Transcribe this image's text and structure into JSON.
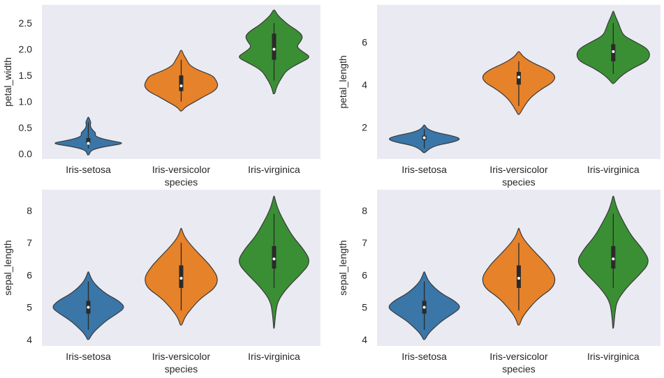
{
  "colors": {
    "background": "#ffffff",
    "axes_face": "#eaeaf2",
    "outline": "#3a3a3a",
    "text": "#262626",
    "box": "#2a2a2a",
    "median": "#ffffff",
    "palette": {
      "Iris-setosa": "#3a76a8",
      "Iris-versicolor": "#e6822a",
      "Iris-virginica": "#3a8f34"
    }
  },
  "chart_data": [
    {
      "type": "violin",
      "xlabel": "species",
      "ylabel": "petal_width",
      "ylim": [
        -0.1,
        2.85
      ],
      "yticks": [
        0.0,
        0.5,
        1.0,
        1.5,
        2.0,
        2.5
      ],
      "ytick_labels": [
        "0.0",
        "0.5",
        "1.0",
        "1.5",
        "2.0",
        "2.5"
      ],
      "grid": false,
      "categories": [
        "Iris-setosa",
        "Iris-versicolor",
        "Iris-virginica"
      ],
      "series": [
        {
          "category": "Iris-setosa",
          "min": 0.1,
          "q1": 0.2,
          "median": 0.2,
          "q3": 0.3,
          "max": 0.6,
          "kde_lo": -0.02,
          "kde_hi": 0.7,
          "profile": [
            [
              -0.02,
              0.02
            ],
            [
              0.05,
              0.06
            ],
            [
              0.1,
              0.2
            ],
            [
              0.15,
              0.55
            ],
            [
              0.2,
              1.0
            ],
            [
              0.25,
              0.62
            ],
            [
              0.3,
              0.3
            ],
            [
              0.35,
              0.18
            ],
            [
              0.4,
              0.2
            ],
            [
              0.45,
              0.12
            ],
            [
              0.5,
              0.07
            ],
            [
              0.55,
              0.05
            ],
            [
              0.6,
              0.07
            ],
            [
              0.65,
              0.04
            ],
            [
              0.7,
              0.01
            ]
          ]
        },
        {
          "category": "Iris-versicolor",
          "min": 1.0,
          "q1": 1.2,
          "median": 1.3,
          "q3": 1.5,
          "max": 1.8,
          "kde_lo": 0.82,
          "kde_hi": 1.98,
          "profile": [
            [
              0.82,
              0.02
            ],
            [
              0.9,
              0.12
            ],
            [
              1.0,
              0.38
            ],
            [
              1.1,
              0.62
            ],
            [
              1.2,
              0.9
            ],
            [
              1.3,
              1.0
            ],
            [
              1.4,
              0.95
            ],
            [
              1.5,
              0.85
            ],
            [
              1.6,
              0.45
            ],
            [
              1.7,
              0.22
            ],
            [
              1.8,
              0.15
            ],
            [
              1.9,
              0.06
            ],
            [
              1.98,
              0.02
            ]
          ]
        },
        {
          "category": "Iris-virginica",
          "min": 1.4,
          "q1": 1.8,
          "median": 2.0,
          "q3": 2.3,
          "max": 2.5,
          "kde_lo": 1.15,
          "kde_hi": 2.75,
          "profile": [
            [
              1.15,
              0.02
            ],
            [
              1.3,
              0.08
            ],
            [
              1.45,
              0.2
            ],
            [
              1.6,
              0.34
            ],
            [
              1.75,
              0.72
            ],
            [
              1.85,
              1.0
            ],
            [
              1.95,
              0.78
            ],
            [
              2.05,
              0.6
            ],
            [
              2.15,
              0.72
            ],
            [
              2.25,
              0.78
            ],
            [
              2.35,
              0.65
            ],
            [
              2.45,
              0.42
            ],
            [
              2.55,
              0.25
            ],
            [
              2.65,
              0.1
            ],
            [
              2.75,
              0.02
            ]
          ]
        }
      ]
    },
    {
      "type": "violin",
      "xlabel": "species",
      "ylabel": "petal_length",
      "ylim": [
        0.5,
        7.75
      ],
      "yticks": [
        2,
        4,
        6
      ],
      "ytick_labels": [
        "2",
        "4",
        "6"
      ],
      "grid": false,
      "categories": [
        "Iris-setosa",
        "Iris-versicolor",
        "Iris-virginica"
      ],
      "series": [
        {
          "category": "Iris-setosa",
          "min": 1.0,
          "q1": 1.4,
          "median": 1.5,
          "q3": 1.6,
          "max": 1.9,
          "kde_lo": 0.8,
          "kde_hi": 2.1,
          "profile": [
            [
              0.8,
              0.02
            ],
            [
              1.0,
              0.15
            ],
            [
              1.15,
              0.35
            ],
            [
              1.3,
              0.8
            ],
            [
              1.45,
              1.0
            ],
            [
              1.6,
              0.75
            ],
            [
              1.75,
              0.3
            ],
            [
              1.9,
              0.1
            ],
            [
              2.0,
              0.05
            ],
            [
              2.1,
              0.01
            ]
          ]
        },
        {
          "category": "Iris-versicolor",
          "min": 3.0,
          "q1": 4.0,
          "median": 4.35,
          "q3": 4.6,
          "max": 5.1,
          "kde_lo": 2.6,
          "kde_hi": 5.55,
          "profile": [
            [
              2.6,
              0.02
            ],
            [
              3.0,
              0.15
            ],
            [
              3.4,
              0.32
            ],
            [
              3.8,
              0.62
            ],
            [
              4.1,
              0.92
            ],
            [
              4.4,
              1.0
            ],
            [
              4.7,
              0.8
            ],
            [
              5.0,
              0.4
            ],
            [
              5.3,
              0.12
            ],
            [
              5.55,
              0.02
            ]
          ]
        },
        {
          "category": "Iris-virginica",
          "min": 4.5,
          "q1": 5.1,
          "median": 5.55,
          "q3": 5.9,
          "max": 6.9,
          "kde_lo": 4.05,
          "kde_hi": 7.45,
          "profile": [
            [
              4.05,
              0.02
            ],
            [
              4.4,
              0.2
            ],
            [
              4.8,
              0.55
            ],
            [
              5.1,
              0.92
            ],
            [
              5.4,
              1.0
            ],
            [
              5.7,
              0.92
            ],
            [
              6.0,
              0.6
            ],
            [
              6.3,
              0.28
            ],
            [
              6.6,
              0.2
            ],
            [
              6.9,
              0.14
            ],
            [
              7.2,
              0.06
            ],
            [
              7.45,
              0.01
            ]
          ]
        }
      ]
    },
    {
      "type": "violin",
      "xlabel": "species",
      "ylabel": "sepal_length",
      "ylim": [
        3.8,
        8.65
      ],
      "yticks": [
        4,
        5,
        6,
        7,
        8
      ],
      "ytick_labels": [
        "4",
        "5",
        "6",
        "7",
        "8"
      ],
      "grid": false,
      "categories": [
        "Iris-setosa",
        "Iris-versicolor",
        "Iris-virginica"
      ],
      "series": [
        {
          "category": "Iris-setosa",
          "min": 4.3,
          "q1": 4.8,
          "median": 5.0,
          "q3": 5.2,
          "max": 5.8,
          "kde_lo": 4.0,
          "kde_hi": 6.1,
          "profile": [
            [
              4.0,
              0.02
            ],
            [
              4.2,
              0.12
            ],
            [
              4.4,
              0.3
            ],
            [
              4.6,
              0.5
            ],
            [
              4.8,
              0.78
            ],
            [
              5.0,
              1.0
            ],
            [
              5.2,
              0.82
            ],
            [
              5.4,
              0.5
            ],
            [
              5.6,
              0.28
            ],
            [
              5.8,
              0.12
            ],
            [
              6.0,
              0.04
            ],
            [
              6.1,
              0.01
            ]
          ]
        },
        {
          "category": "Iris-versicolor",
          "min": 4.9,
          "q1": 5.6,
          "median": 5.9,
          "q3": 6.3,
          "max": 7.0,
          "kde_lo": 4.45,
          "kde_hi": 7.45,
          "profile": [
            [
              4.45,
              0.02
            ],
            [
              4.7,
              0.1
            ],
            [
              5.0,
              0.3
            ],
            [
              5.3,
              0.55
            ],
            [
              5.6,
              0.92
            ],
            [
              5.9,
              1.0
            ],
            [
              6.2,
              0.85
            ],
            [
              6.5,
              0.62
            ],
            [
              6.8,
              0.36
            ],
            [
              7.1,
              0.14
            ],
            [
              7.3,
              0.05
            ],
            [
              7.45,
              0.01
            ]
          ]
        },
        {
          "category": "Iris-virginica",
          "min": 5.6,
          "q1": 6.2,
          "median": 6.5,
          "q3": 6.9,
          "max": 7.9,
          "kde_lo": 4.35,
          "kde_hi": 8.45,
          "profile": [
            [
              4.35,
              0.01
            ],
            [
              4.8,
              0.04
            ],
            [
              5.2,
              0.1
            ],
            [
              5.6,
              0.35
            ],
            [
              6.0,
              0.7
            ],
            [
              6.4,
              1.0
            ],
            [
              6.8,
              0.8
            ],
            [
              7.2,
              0.5
            ],
            [
              7.6,
              0.3
            ],
            [
              8.0,
              0.12
            ],
            [
              8.3,
              0.04
            ],
            [
              8.45,
              0.01
            ]
          ]
        }
      ]
    },
    {
      "type": "violin",
      "xlabel": "species",
      "ylabel": "sepal_length",
      "ylim": [
        3.8,
        8.65
      ],
      "yticks": [
        4,
        5,
        6,
        7,
        8
      ],
      "ytick_labels": [
        "4",
        "5",
        "6",
        "7",
        "8"
      ],
      "grid": false,
      "categories": [
        "Iris-setosa",
        "Iris-versicolor",
        "Iris-virginica"
      ],
      "series": [
        {
          "category": "Iris-setosa",
          "min": 4.3,
          "q1": 4.8,
          "median": 5.0,
          "q3": 5.2,
          "max": 5.8,
          "kde_lo": 4.0,
          "kde_hi": 6.1,
          "profile": [
            [
              4.0,
              0.02
            ],
            [
              4.2,
              0.12
            ],
            [
              4.4,
              0.3
            ],
            [
              4.6,
              0.5
            ],
            [
              4.8,
              0.78
            ],
            [
              5.0,
              1.0
            ],
            [
              5.2,
              0.82
            ],
            [
              5.4,
              0.5
            ],
            [
              5.6,
              0.28
            ],
            [
              5.8,
              0.12
            ],
            [
              6.0,
              0.04
            ],
            [
              6.1,
              0.01
            ]
          ]
        },
        {
          "category": "Iris-versicolor",
          "min": 4.9,
          "q1": 5.6,
          "median": 5.9,
          "q3": 6.3,
          "max": 7.0,
          "kde_lo": 4.45,
          "kde_hi": 7.45,
          "profile": [
            [
              4.45,
              0.02
            ],
            [
              4.7,
              0.1
            ],
            [
              5.0,
              0.3
            ],
            [
              5.3,
              0.55
            ],
            [
              5.6,
              0.92
            ],
            [
              5.9,
              1.0
            ],
            [
              6.2,
              0.85
            ],
            [
              6.5,
              0.62
            ],
            [
              6.8,
              0.36
            ],
            [
              7.1,
              0.14
            ],
            [
              7.3,
              0.05
            ],
            [
              7.45,
              0.01
            ]
          ]
        },
        {
          "category": "Iris-virginica",
          "min": 5.6,
          "q1": 6.2,
          "median": 6.5,
          "q3": 6.9,
          "max": 7.9,
          "kde_lo": 4.35,
          "kde_hi": 8.45,
          "profile": [
            [
              4.35,
              0.01
            ],
            [
              4.8,
              0.04
            ],
            [
              5.2,
              0.1
            ],
            [
              5.6,
              0.35
            ],
            [
              6.0,
              0.7
            ],
            [
              6.4,
              1.0
            ],
            [
              6.8,
              0.8
            ],
            [
              7.2,
              0.5
            ],
            [
              7.6,
              0.3
            ],
            [
              8.0,
              0.12
            ],
            [
              8.3,
              0.04
            ],
            [
              8.45,
              0.01
            ]
          ]
        }
      ]
    }
  ]
}
